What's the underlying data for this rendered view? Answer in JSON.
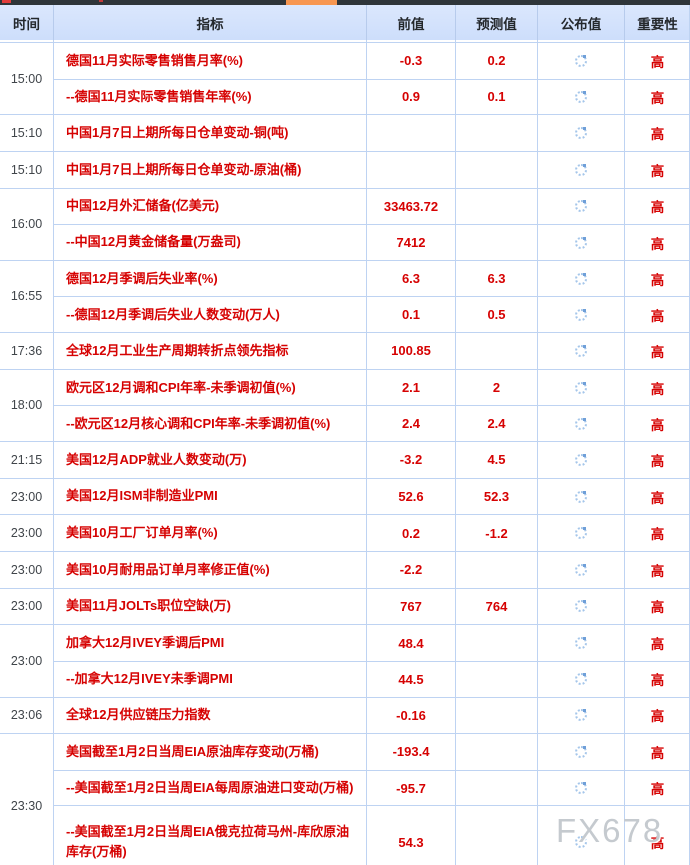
{
  "colors": {
    "accent_red": "#d60202",
    "grid_line": "#bed3f2",
    "header_bg": "#d4e2fc",
    "topbar_dark": "#2f353a",
    "scroll_thumb_orange": "#f79651",
    "spinner_blue": "#a5c6ea",
    "watermark_gray": "#c5cacf"
  },
  "header": {
    "columns": [
      "时间",
      "指标",
      "前值",
      "预测值",
      "公布值",
      "重要性"
    ]
  },
  "published_column_state": "loading-spinner",
  "watermark": {
    "text": "FX678"
  },
  "groups": [
    {
      "time": "15:00",
      "rows": [
        {
          "indicator": "德国11月实际零售销售月率(%)",
          "previous": "-0.3",
          "forecast": "0.2",
          "actual": "",
          "importance": "高"
        },
        {
          "indicator": "--德国11月实际零售销售年率(%)",
          "previous": "0.9",
          "forecast": "0.1",
          "actual": "",
          "importance": "高"
        }
      ]
    },
    {
      "time": "15:10",
      "rows": [
        {
          "indicator": "中国1月7日上期所每日仓单变动-铜(吨)",
          "previous": "",
          "forecast": "",
          "actual": "",
          "importance": "高"
        }
      ]
    },
    {
      "time": "15:10",
      "rows": [
        {
          "indicator": "中国1月7日上期所每日仓单变动-原油(桶)",
          "previous": "",
          "forecast": "",
          "actual": "",
          "importance": "高"
        }
      ]
    },
    {
      "time": "16:00",
      "rows": [
        {
          "indicator": "中国12月外汇储备(亿美元)",
          "previous": "33463.72",
          "forecast": "",
          "actual": "",
          "importance": "高"
        },
        {
          "indicator": "--中国12月黄金储备量(万盎司)",
          "previous": "7412",
          "forecast": "",
          "actual": "",
          "importance": "高"
        }
      ]
    },
    {
      "time": "16:55",
      "rows": [
        {
          "indicator": "德国12月季调后失业率(%)",
          "previous": "6.3",
          "forecast": "6.3",
          "actual": "",
          "importance": "高"
        },
        {
          "indicator": "--德国12月季调后失业人数变动(万人)",
          "previous": "0.1",
          "forecast": "0.5",
          "actual": "",
          "importance": "高"
        }
      ]
    },
    {
      "time": "17:36",
      "rows": [
        {
          "indicator": "全球12月工业生产周期转折点领先指标",
          "previous": "100.85",
          "forecast": "",
          "actual": "",
          "importance": "高"
        }
      ]
    },
    {
      "time": "18:00",
      "rows": [
        {
          "indicator": "欧元区12月调和CPI年率-未季调初值(%)",
          "previous": "2.1",
          "forecast": "2",
          "actual": "",
          "importance": "高"
        },
        {
          "indicator": "--欧元区12月核心调和CPI年率-未季调初值(%)",
          "previous": "2.4",
          "forecast": "2.4",
          "actual": "",
          "importance": "高"
        }
      ]
    },
    {
      "time": "21:15",
      "rows": [
        {
          "indicator": "美国12月ADP就业人数变动(万)",
          "previous": "-3.2",
          "forecast": "4.5",
          "actual": "",
          "importance": "高"
        }
      ]
    },
    {
      "time": "23:00",
      "rows": [
        {
          "indicator": "美国12月ISM非制造业PMI",
          "previous": "52.6",
          "forecast": "52.3",
          "actual": "",
          "importance": "高"
        }
      ]
    },
    {
      "time": "23:00",
      "rows": [
        {
          "indicator": "美国10月工厂订单月率(%)",
          "previous": "0.2",
          "forecast": "-1.2",
          "actual": "",
          "importance": "高"
        }
      ]
    },
    {
      "time": "23:00",
      "rows": [
        {
          "indicator": "美国10月耐用品订单月率修正值(%)",
          "previous": "-2.2",
          "forecast": "",
          "actual": "",
          "importance": "高"
        }
      ]
    },
    {
      "time": "23:00",
      "rows": [
        {
          "indicator": "美国11月JOLTs职位空缺(万)",
          "previous": "767",
          "forecast": "764",
          "actual": "",
          "importance": "高"
        }
      ]
    },
    {
      "time": "23:00",
      "rows": [
        {
          "indicator": "加拿大12月IVEY季调后PMI",
          "previous": "48.4",
          "forecast": "",
          "actual": "",
          "importance": "高"
        },
        {
          "indicator": "--加拿大12月IVEY未季调PMI",
          "previous": "44.5",
          "forecast": "",
          "actual": "",
          "importance": "高"
        }
      ]
    },
    {
      "time": "23:06",
      "rows": [
        {
          "indicator": "全球12月供应链压力指数",
          "previous": "-0.16",
          "forecast": "",
          "actual": "",
          "importance": "高"
        }
      ]
    },
    {
      "time": "23:30",
      "rows": [
        {
          "indicator": "美国截至1月2日当周EIA原油库存变动(万桶)",
          "previous": "-193.4",
          "forecast": "",
          "actual": "",
          "importance": "高"
        },
        {
          "indicator": "--美国截至1月2日当周EIA每周原油进口变动(万桶)",
          "previous": "-95.7",
          "forecast": "",
          "actual": "",
          "importance": "高"
        },
        {
          "indicator": "--美国截至1月2日当周EIA俄克拉荷马州-库欣原油库存(万桶)",
          "previous": "54.3",
          "forecast": "",
          "actual": "",
          "importance": "高",
          "tall": true
        }
      ]
    }
  ]
}
